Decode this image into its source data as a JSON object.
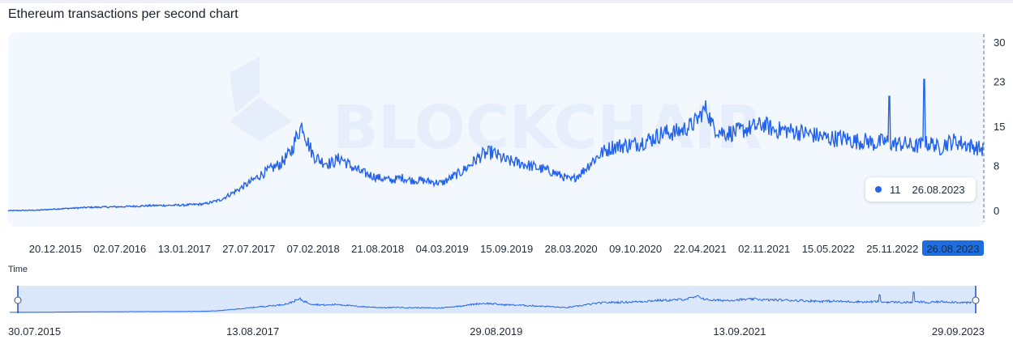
{
  "title": "Ethereum transactions per second chart",
  "colors": {
    "line": "#2563eb",
    "plot_bg": "#f3f7fe",
    "selected_bg": "#1d6fe0",
    "nav_fill": "#dbe8fb"
  },
  "watermark": "BLOCKCHAIR",
  "navigator_label": "Time",
  "tooltip": {
    "value": "11",
    "date": "26.08.2023"
  },
  "chart_data": {
    "type": "line",
    "title": "Ethereum transactions per second chart",
    "xlabel": "",
    "ylabel": "",
    "y_ticks": [
      "30",
      "23",
      "15",
      "8",
      "0"
    ],
    "y_tick_values": [
      30,
      23,
      15,
      8,
      0
    ],
    "ylim": [
      -2,
      31
    ],
    "x_ticks": [
      "20.12.2015",
      "02.07.2016",
      "13.01.2017",
      "27.07.2017",
      "07.02.2018",
      "21.08.2018",
      "04.03.2019",
      "15.09.2019",
      "28.03.2020",
      "09.10.2020",
      "22.04.2021",
      "02.11.2021",
      "15.05.2022",
      "25.11.2022",
      "26.08.2023"
    ],
    "selected_x_tick": "26.08.2023",
    "xlim": [
      "30.07.2015",
      "26.08.2023"
    ],
    "grid": false,
    "series": [
      {
        "x": [
          "30.07.2015",
          "01.11.2015",
          "20.12.2015",
          "01.04.2016",
          "02.07.2016",
          "01.10.2016",
          "13.01.2017",
          "15.03.2017",
          "01.05.2017",
          "15.06.2017",
          "27.07.2017",
          "01.09.2017",
          "01.10.2017",
          "01.11.2017",
          "01.12.2017",
          "20.12.2017",
          "05.01.2018",
          "20.01.2018",
          "07.02.2018",
          "01.03.2018",
          "01.04.2018",
          "01.05.2018",
          "01.06.2018",
          "01.07.2018",
          "21.08.2018",
          "01.10.2018",
          "01.11.2018",
          "01.12.2018",
          "01.01.2019",
          "04.03.2019",
          "01.04.2019",
          "01.05.2019",
          "01.06.2019",
          "01.07.2019",
          "01.08.2019",
          "15.09.2019",
          "01.11.2019",
          "01.12.2019",
          "01.01.2020",
          "01.02.2020",
          "28.03.2020",
          "01.05.2020",
          "01.06.2020",
          "01.07.2020",
          "01.08.2020",
          "09.10.2020",
          "01.12.2020",
          "01.01.2021",
          "01.02.2021",
          "01.03.2021",
          "01.04.2021",
          "22.04.2021",
          "10.05.2021",
          "01.06.2021",
          "01.07.2021",
          "01.08.2021",
          "01.09.2021",
          "02.11.2021",
          "01.12.2021",
          "01.01.2022",
          "01.03.2022",
          "15.05.2022",
          "01.07.2022",
          "01.08.2022",
          "15.09.2022",
          "01.10.2022",
          "01.11.2022",
          "25.11.2022",
          "01.01.2023",
          "01.02.2023",
          "01.03.2023",
          "01.04.2023",
          "15.04.2023",
          "01.05.2023",
          "01.06.2023",
          "01.07.2023",
          "26.08.2023"
        ],
        "y": [
          0.1,
          0.2,
          0.4,
          0.7,
          0.8,
          1.0,
          1.1,
          1.3,
          2.0,
          3.5,
          5.0,
          6.5,
          7.5,
          8.5,
          10.5,
          13.5,
          15.5,
          12.5,
          10.0,
          9.0,
          8.5,
          9.5,
          8.0,
          7.0,
          6.0,
          5.5,
          6.0,
          5.5,
          5.5,
          5.0,
          6.0,
          7.0,
          8.5,
          10.0,
          10.5,
          9.0,
          8.5,
          8.0,
          7.5,
          7.0,
          5.5,
          7.0,
          9.0,
          10.5,
          11.5,
          12.0,
          13.0,
          14.0,
          14.0,
          14.5,
          15.5,
          17.0,
          18.5,
          15.0,
          14.0,
          14.0,
          14.5,
          15.5,
          14.5,
          14.5,
          14.0,
          13.0,
          13.0,
          12.5,
          12.5,
          12.0,
          12.5,
          12.0,
          12.0,
          11.5,
          12.0,
          12.0,
          11.0,
          12.0,
          12.5,
          12.0,
          11.0
        ]
      }
    ],
    "peaks": [
      {
        "x": "15.11.2022",
        "y": 20.5
      },
      {
        "x": "01.03.2023",
        "y": 23.5
      }
    ],
    "navigator": {
      "range": [
        "30.07.2015",
        "29.09.2023"
      ],
      "ticks": [
        "30.07.2015",
        "13.08.2017",
        "29.08.2019",
        "13.09.2021",
        "29.09.2023"
      ]
    }
  }
}
